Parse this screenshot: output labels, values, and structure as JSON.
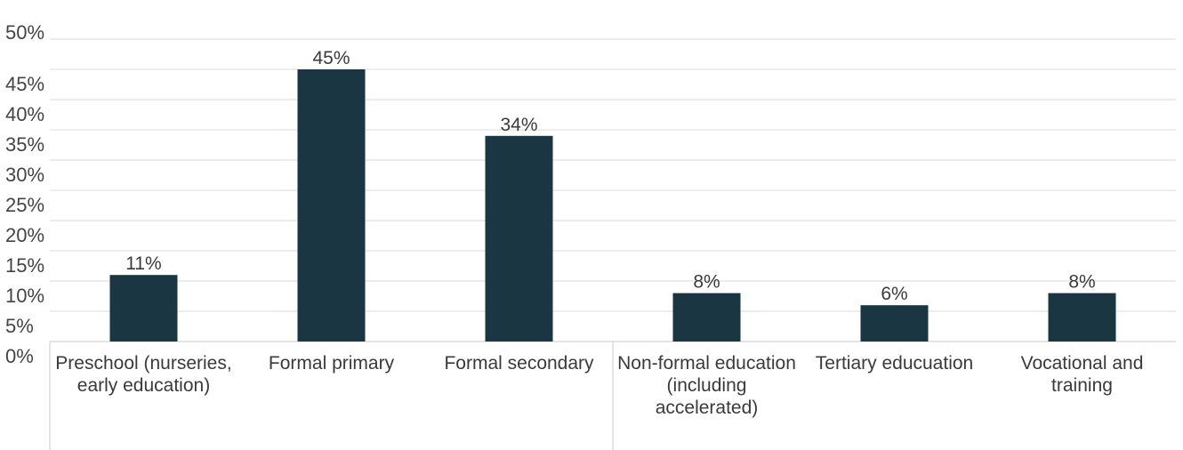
{
  "chart_data": {
    "type": "bar",
    "categories": [
      "Preschool (nurseries, early education)",
      "Formal primary",
      "Formal secondary",
      "Non-formal education (including accelerated)",
      "Tertiary educuation",
      "Vocational and training"
    ],
    "values": [
      11,
      45,
      34,
      8,
      6,
      8
    ],
    "data_labels": [
      "11%",
      "45%",
      "34%",
      "8%",
      "6%",
      "8%"
    ],
    "y_ticks": [
      "0%",
      "5%",
      "10%",
      "15%",
      "20%",
      "25%",
      "30%",
      "35%",
      "40%",
      "45%",
      "50%"
    ],
    "ylim": [
      0,
      50
    ],
    "grid": true,
    "legend": "none",
    "colors": {
      "bar": "#193642",
      "grid": "#d9d9d9",
      "axis": "#c8c8c8"
    }
  }
}
